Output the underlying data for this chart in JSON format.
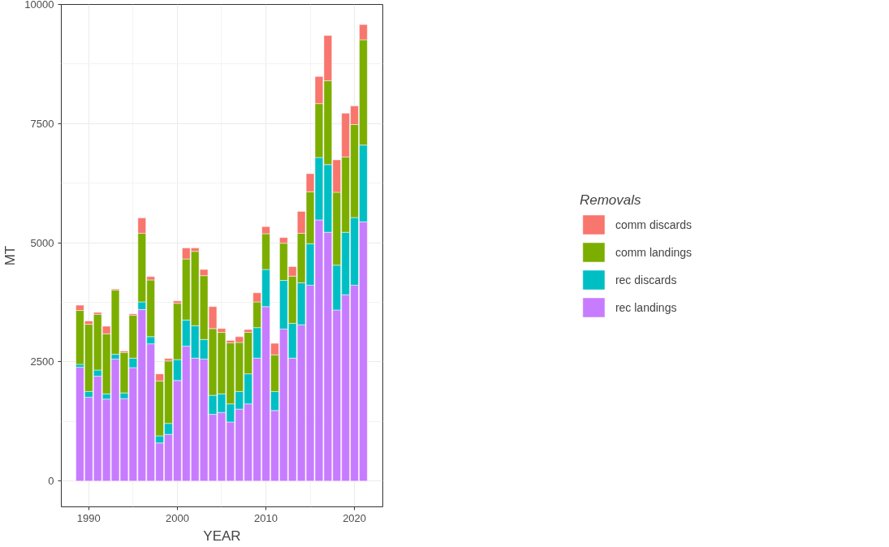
{
  "chart_data": {
    "type": "bar",
    "stacked": true,
    "xlabel": "YEAR",
    "ylabel": "MT",
    "legend_title": "Removals",
    "x": [
      1989,
      1990,
      1991,
      1992,
      1993,
      1994,
      1995,
      1996,
      1997,
      1998,
      1999,
      2000,
      2001,
      2002,
      2003,
      2004,
      2005,
      2006,
      2007,
      2008,
      2009,
      2010,
      2011,
      2012,
      2013,
      2014,
      2015,
      2016,
      2017,
      2018,
      2019,
      2020,
      2021
    ],
    "series": [
      {
        "name": "rec landings",
        "color": "#c77cff",
        "values": [
          2390,
          1760,
          2200,
          1720,
          2560,
          1730,
          2380,
          3600,
          2880,
          800,
          980,
          2110,
          2830,
          2580,
          2560,
          1400,
          1440,
          1240,
          1510,
          1620,
          2580,
          3660,
          1480,
          3190,
          2580,
          3280,
          4110,
          5480,
          5220,
          3590,
          3910,
          4110,
          5440
        ]
      },
      {
        "name": "rec discards",
        "color": "#00bfc4",
        "values": [
          60,
          120,
          130,
          110,
          100,
          120,
          200,
          160,
          150,
          150,
          230,
          440,
          550,
          680,
          410,
          400,
          390,
          380,
          370,
          630,
          640,
          780,
          400,
          1020,
          730,
          880,
          870,
          1310,
          1420,
          940,
          1310,
          1420,
          1610
        ]
      },
      {
        "name": "comm landings",
        "color": "#7cae00",
        "values": [
          1130,
          1410,
          1170,
          1260,
          1350,
          850,
          900,
          1440,
          1190,
          1150,
          1310,
          1180,
          1280,
          1560,
          1340,
          1400,
          1290,
          1280,
          1030,
          870,
          540,
          750,
          770,
          780,
          990,
          1040,
          1090,
          1130,
          1760,
          1530,
          1580,
          1950,
          2210
        ]
      },
      {
        "name": "comm discards",
        "color": "#f8766d",
        "values": [
          110,
          70,
          40,
          160,
          20,
          30,
          30,
          320,
          70,
          150,
          50,
          50,
          230,
          70,
          130,
          460,
          80,
          50,
          120,
          60,
          190,
          150,
          240,
          120,
          200,
          460,
          380,
          570,
          950,
          680,
          920,
          390,
          320
        ]
      }
    ],
    "xlim": [
      1986.9,
      2023.2
    ],
    "xticks": [
      1990,
      2000,
      2010,
      2020
    ],
    "ylim": [
      -540,
      10000
    ],
    "yticks": [
      0,
      2500,
      5000,
      7500,
      10000
    ],
    "grid": true,
    "legend": "right"
  }
}
